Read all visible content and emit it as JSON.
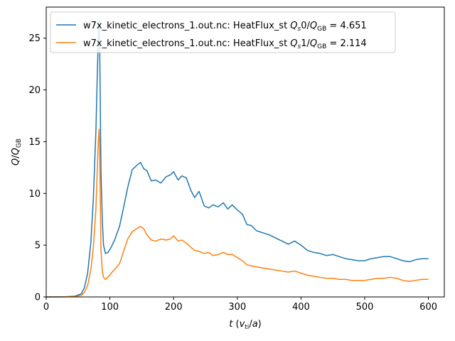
{
  "chart_data": {
    "type": "line",
    "xlabel": "t (v_ti/a)",
    "ylabel": "Q/Q_GB",
    "xlim": [
      0,
      625
    ],
    "ylim": [
      0,
      28
    ],
    "x_ticks": [
      0,
      100,
      200,
      300,
      400,
      500,
      600
    ],
    "y_ticks": [
      0,
      5,
      10,
      15,
      20,
      25
    ],
    "grid": false,
    "legend_position": "top-left",
    "series": [
      {
        "name": "w7x_kinetic_electrons_1.out.nc: HeatFlux_st Q_s0/Q_GB = 4.651",
        "legend_prefix": "w7x_kinetic_electrons_1.out.nc: HeatFlux_st ",
        "legend_suffix": " = 4.651",
        "legend_species": "0",
        "color": "#1f77b4",
        "x": [
          0,
          30,
          45,
          55,
          60,
          65,
          70,
          74,
          78,
          80,
          82,
          83,
          84,
          85,
          86,
          88,
          90,
          93,
          97,
          102,
          108,
          115,
          122,
          128,
          135,
          142,
          148,
          153,
          158,
          165,
          172,
          180,
          188,
          195,
          200,
          207,
          213,
          220,
          227,
          233,
          240,
          248,
          255,
          262,
          270,
          278,
          285,
          292,
          300,
          308,
          315,
          322,
          330,
          340,
          350,
          360,
          370,
          380,
          390,
          400,
          410,
          420,
          430,
          440,
          450,
          460,
          470,
          480,
          490,
          500,
          510,
          520,
          530,
          540,
          550,
          560,
          570,
          580,
          590,
          600
        ],
        "y": [
          0,
          0.02,
          0.08,
          0.3,
          0.9,
          2.3,
          5.2,
          9.5,
          16,
          21,
          25.5,
          26.8,
          24,
          18,
          12,
          7.5,
          5,
          4.2,
          4.3,
          4.8,
          5.6,
          6.8,
          8.8,
          10.6,
          12.3,
          12.7,
          13,
          12.4,
          12.2,
          11.2,
          11.3,
          11,
          11.6,
          11.8,
          12.1,
          11.3,
          11.7,
          11.5,
          10.3,
          9.6,
          10.2,
          8.8,
          8.6,
          8.9,
          8.7,
          9.1,
          8.5,
          8.9,
          8.4,
          8.0,
          7.0,
          6.9,
          6.4,
          6.2,
          6.0,
          5.7,
          5.4,
          5.1,
          5.4,
          5.0,
          4.5,
          4.3,
          4.2,
          4.0,
          4.1,
          3.9,
          3.7,
          3.6,
          3.5,
          3.5,
          3.7,
          3.8,
          3.9,
          3.9,
          3.7,
          3.5,
          3.4,
          3.6,
          3.7,
          3.7
        ]
      },
      {
        "name": "w7x_kinetic_electrons_1.out.nc: HeatFlux_st Q_s1/Q_GB = 2.114",
        "legend_prefix": "w7x_kinetic_electrons_1.out.nc: HeatFlux_st ",
        "legend_suffix": " = 2.114",
        "legend_species": "1",
        "color": "#ff7f0e",
        "x": [
          0,
          30,
          45,
          55,
          60,
          65,
          70,
          74,
          78,
          80,
          82,
          83,
          84,
          85,
          86,
          88,
          90,
          93,
          97,
          102,
          108,
          115,
          122,
          128,
          135,
          142,
          148,
          153,
          158,
          165,
          172,
          180,
          188,
          195,
          200,
          207,
          213,
          220,
          227,
          233,
          240,
          248,
          255,
          262,
          270,
          278,
          285,
          292,
          300,
          308,
          315,
          322,
          330,
          340,
          350,
          360,
          370,
          380,
          390,
          400,
          410,
          420,
          430,
          440,
          450,
          460,
          470,
          480,
          490,
          500,
          510,
          520,
          530,
          540,
          550,
          560,
          570,
          580,
          590,
          600
        ],
        "y": [
          0,
          0.01,
          0.04,
          0.15,
          0.45,
          1.1,
          2.6,
          4.8,
          8.5,
          12,
          15.3,
          16.2,
          14,
          9,
          4.5,
          2.5,
          1.9,
          1.7,
          1.9,
          2.3,
          2.7,
          3.2,
          4.5,
          5.6,
          6.3,
          6.6,
          6.8,
          6.6,
          6.0,
          5.5,
          5.4,
          5.6,
          5.5,
          5.6,
          5.9,
          5.4,
          5.5,
          5.2,
          4.8,
          4.5,
          4.4,
          4.2,
          4.3,
          4.0,
          4.1,
          4.3,
          4.1,
          4.1,
          3.8,
          3.5,
          3.1,
          3.0,
          2.9,
          2.8,
          2.7,
          2.6,
          2.5,
          2.4,
          2.5,
          2.3,
          2.1,
          2.0,
          1.9,
          1.8,
          1.8,
          1.7,
          1.7,
          1.6,
          1.6,
          1.6,
          1.7,
          1.8,
          1.8,
          1.9,
          1.8,
          1.6,
          1.5,
          1.6,
          1.7,
          1.7
        ]
      }
    ]
  }
}
